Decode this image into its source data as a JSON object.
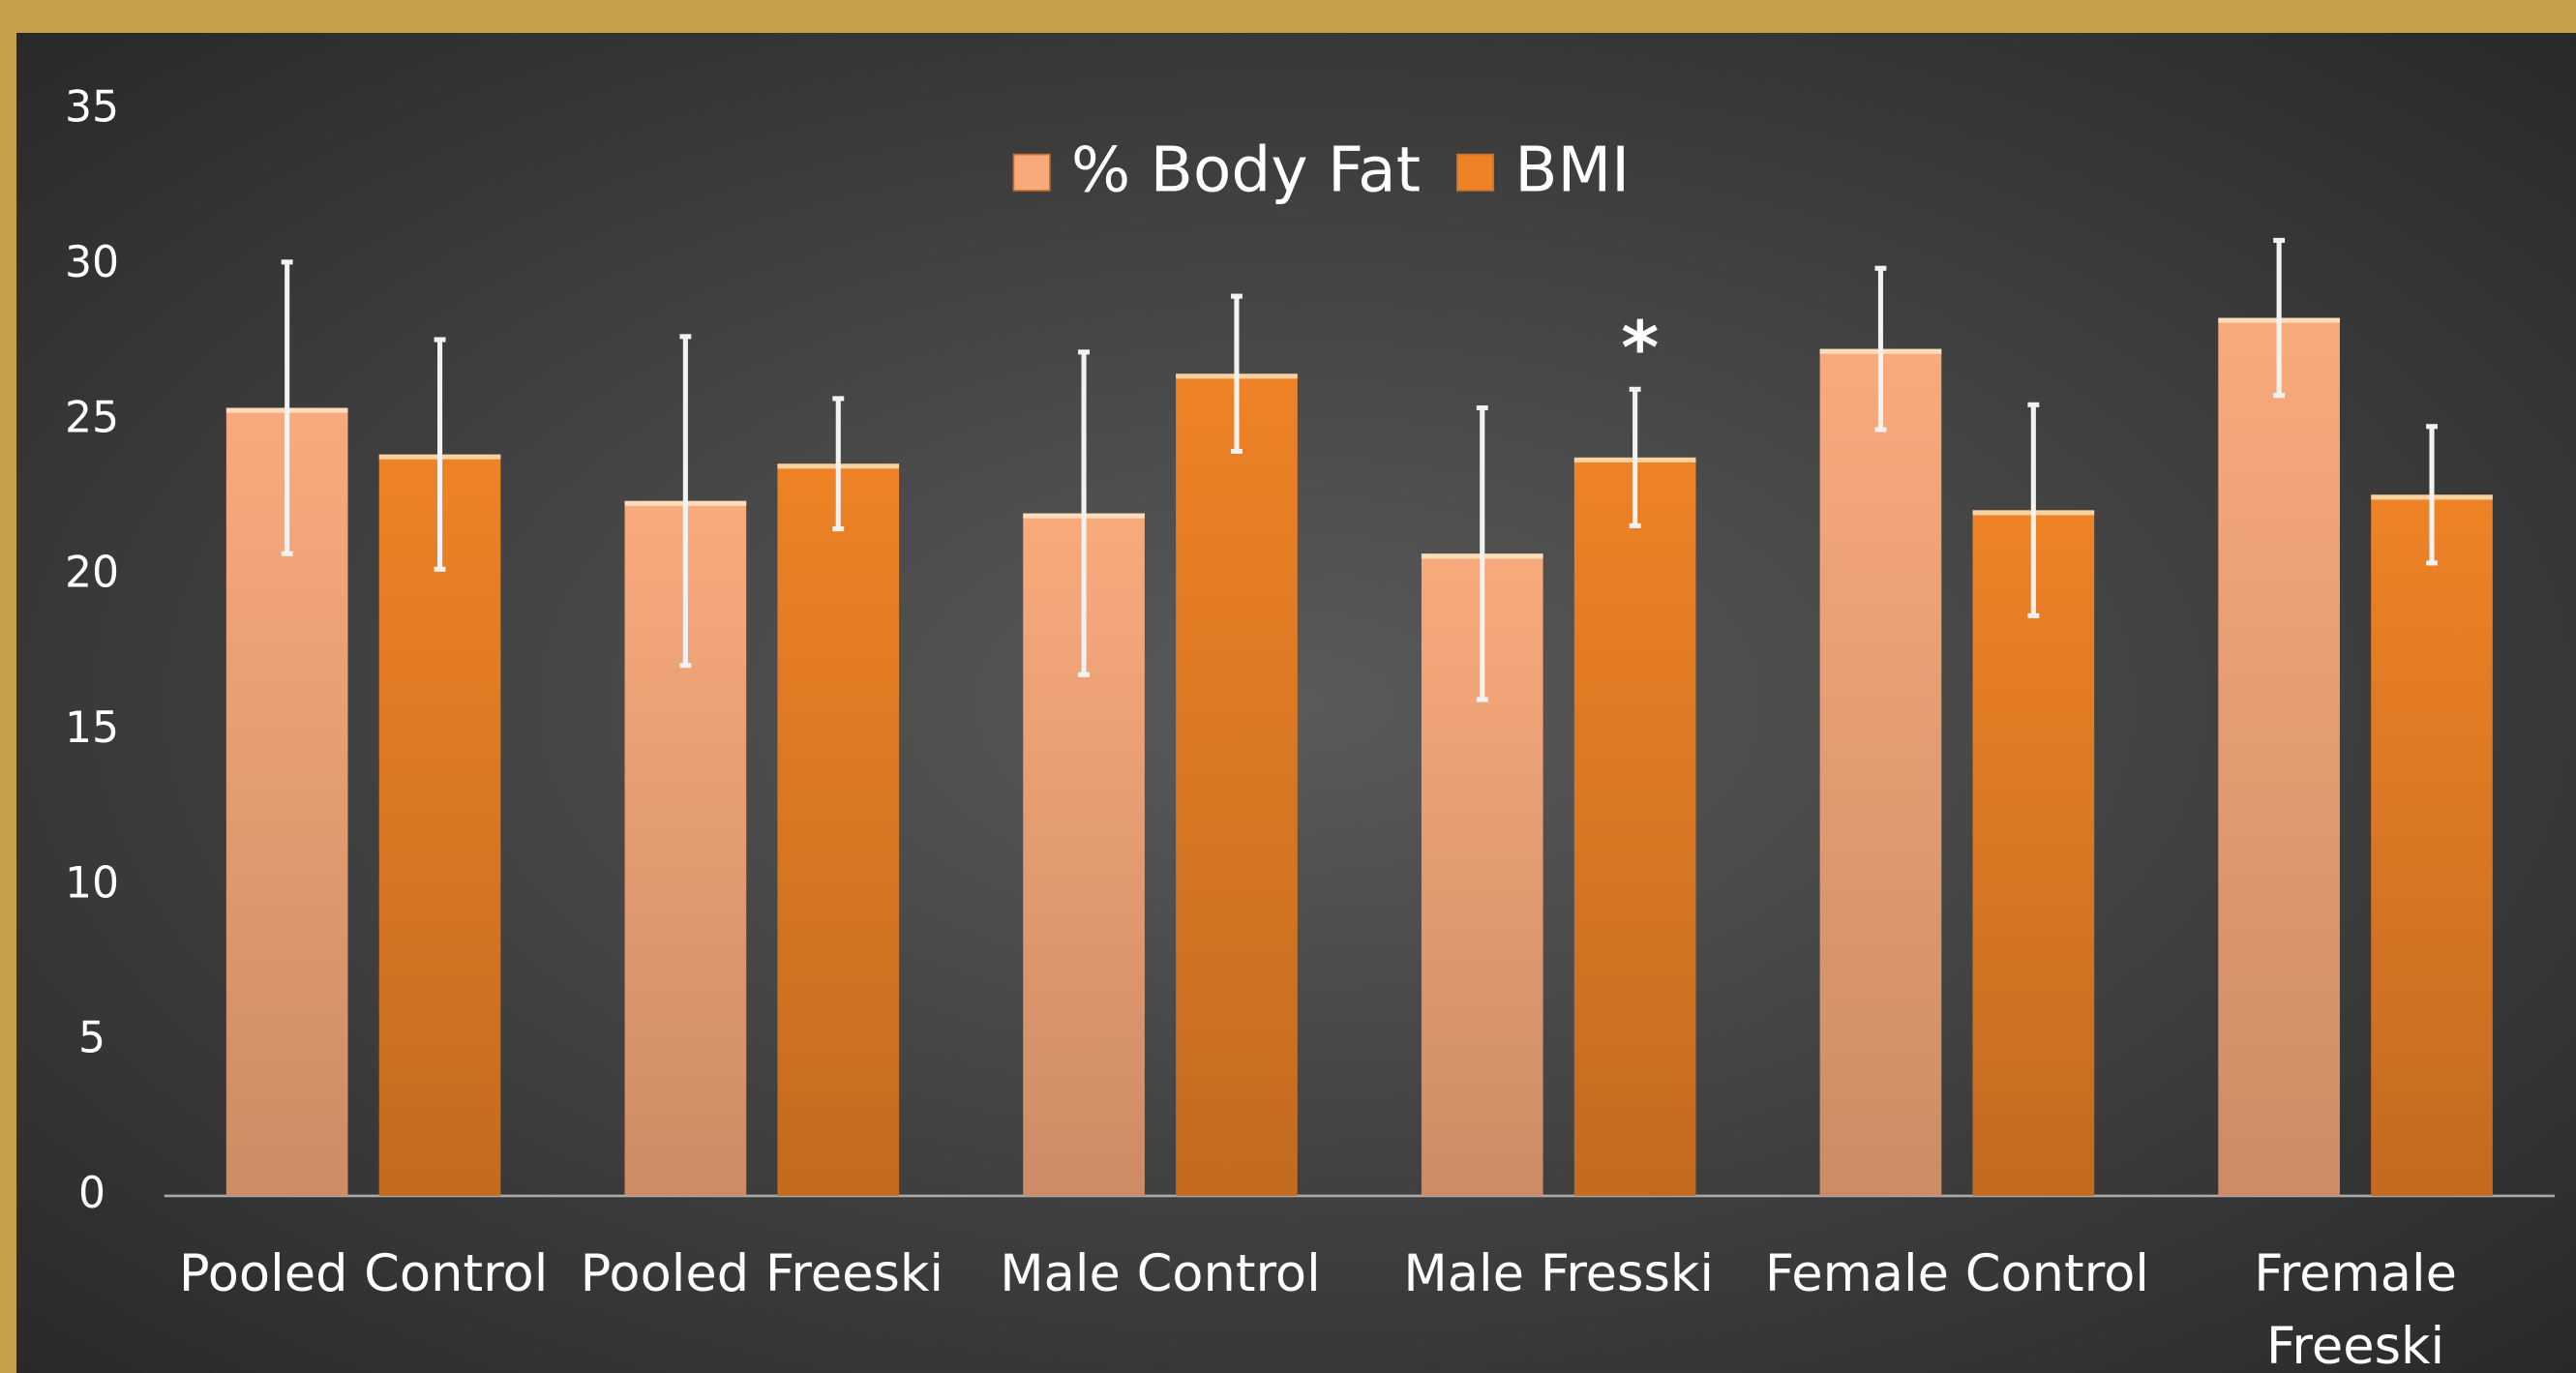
{
  "chart_data": {
    "type": "bar",
    "categories": [
      "Pooled Control",
      "Pooled Freeski",
      "Male Control",
      "Male Fresski",
      "Female Control",
      "Fremale Freeski"
    ],
    "series": [
      {
        "name": "% Body Fat",
        "color": "#f9aa7c",
        "values": [
          25.4,
          22.4,
          22.0,
          20.7,
          27.3,
          28.3
        ],
        "errors": [
          4.7,
          5.3,
          5.2,
          4.7,
          2.6,
          2.5
        ]
      },
      {
        "name": "BMI",
        "color": "#ee8226",
        "values": [
          23.9,
          23.6,
          26.5,
          23.8,
          22.1,
          22.6
        ],
        "errors": [
          3.7,
          2.1,
          2.5,
          2.2,
          3.4,
          2.2
        ]
      }
    ],
    "annotations": [
      {
        "text": "*",
        "category": 3,
        "series": 1
      }
    ],
    "ylim": [
      0,
      35
    ],
    "yticks": [
      0,
      5,
      10,
      15,
      20,
      25,
      30,
      35
    ],
    "grid": false,
    "legend": "top"
  }
}
